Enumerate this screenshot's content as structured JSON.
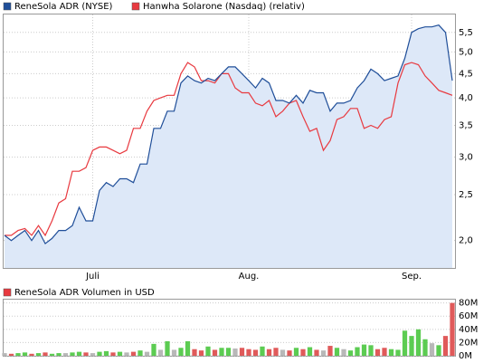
{
  "chart_data": [
    {
      "type": "line",
      "log_scale": true,
      "grid": true,
      "legend": "top-left",
      "categories": [
        null,
        null,
        null,
        null,
        null,
        null,
        null,
        null,
        null,
        null,
        null,
        null,
        null,
        "Juli",
        null,
        null,
        null,
        null,
        null,
        null,
        null,
        null,
        null,
        null,
        null,
        null,
        null,
        null,
        null,
        null,
        null,
        null,
        null,
        null,
        null,
        null,
        "Aug.",
        null,
        null,
        null,
        null,
        null,
        null,
        null,
        null,
        null,
        null,
        null,
        null,
        null,
        null,
        null,
        null,
        null,
        null,
        null,
        null,
        null,
        null,
        null,
        "Sep.",
        null,
        null,
        null,
        null,
        null,
        null
      ],
      "series": [
        {
          "name": "ReneSola ADR (NYSE)",
          "color": "#1f4e99",
          "fill": "#dde8f8",
          "values": [
            2.05,
            2.0,
            2.05,
            2.1,
            2.0,
            2.1,
            1.97,
            2.02,
            2.1,
            2.1,
            2.15,
            2.35,
            2.2,
            2.2,
            2.55,
            2.65,
            2.6,
            2.7,
            2.7,
            2.65,
            2.9,
            2.9,
            3.45,
            3.45,
            3.75,
            3.75,
            4.3,
            4.45,
            4.35,
            4.3,
            4.4,
            4.35,
            4.5,
            4.65,
            4.65,
            4.5,
            4.35,
            4.2,
            4.4,
            4.3,
            3.95,
            3.95,
            3.9,
            4.05,
            3.9,
            4.15,
            4.1,
            4.1,
            3.75,
            3.9,
            3.9,
            3.95,
            4.2,
            4.35,
            4.6,
            4.5,
            4.35,
            4.4,
            4.45,
            4.85,
            5.5,
            5.6,
            5.65,
            5.65,
            5.7,
            5.5,
            4.35
          ]
        },
        {
          "name": "Hanwha Solarone (Nasdaq) (relativ)",
          "color": "#e8393f",
          "values": [
            2.05,
            2.05,
            2.1,
            2.12,
            2.05,
            2.15,
            2.05,
            2.2,
            2.4,
            2.45,
            2.8,
            2.8,
            2.85,
            3.1,
            3.15,
            3.15,
            3.1,
            3.05,
            3.1,
            3.45,
            3.45,
            3.75,
            3.95,
            4.0,
            4.05,
            4.05,
            4.5,
            4.75,
            4.65,
            4.35,
            4.35,
            4.3,
            4.5,
            4.5,
            4.2,
            4.1,
            4.1,
            3.9,
            3.85,
            3.95,
            3.65,
            3.75,
            3.9,
            3.95,
            3.65,
            3.4,
            3.45,
            3.1,
            3.25,
            3.6,
            3.65,
            3.8,
            3.8,
            3.45,
            3.5,
            3.45,
            3.6,
            3.65,
            4.3,
            4.7,
            4.75,
            4.7,
            4.45,
            4.3,
            4.15,
            4.1,
            4.05
          ]
        }
      ],
      "ylim": [
        1.75,
        6.0
      ],
      "yticks": [
        {
          "value": 2,
          "label": "2,0"
        },
        {
          "value": 2.5,
          "label": "2,5"
        },
        {
          "value": 3,
          "label": "3,0"
        },
        {
          "value": 3.5,
          "label": "3,5"
        },
        {
          "value": 4,
          "label": "4,0"
        },
        {
          "value": 4.5,
          "label": "4,5"
        },
        {
          "value": 5,
          "label": "5,0"
        },
        {
          "value": 5.5,
          "label": "5,5"
        }
      ]
    },
    {
      "type": "bar",
      "grid": true,
      "series": [
        {
          "name": "ReneSola ADR Volumen in USD",
          "color": "#e8393f",
          "up_color": "#5ccc52",
          "down_color": "#e05a5a",
          "flat_color": "#b8b8b8",
          "values": [
            4000000,
            3000000,
            4000000,
            5000000,
            3000000,
            4000000,
            5000000,
            3000000,
            4000000,
            4000000,
            5000000,
            6000000,
            5000000,
            4000000,
            6000000,
            7000000,
            5000000,
            6000000,
            5000000,
            6000000,
            8000000,
            6000000,
            18000000,
            9000000,
            22000000,
            9000000,
            12000000,
            22000000,
            10000000,
            8000000,
            14000000,
            9000000,
            12000000,
            12000000,
            11000000,
            12000000,
            10000000,
            9000000,
            14000000,
            10000000,
            12000000,
            9000000,
            8000000,
            12000000,
            10000000,
            13000000,
            9000000,
            8000000,
            15000000,
            12000000,
            10000000,
            8000000,
            13000000,
            17000000,
            16000000,
            10000000,
            12000000,
            10000000,
            9000000,
            38000000,
            30000000,
            40000000,
            25000000,
            19000000,
            16000000,
            30000000,
            80000000
          ]
        }
      ],
      "ylim": [
        0,
        85000000
      ],
      "yticks": [
        {
          "value": 0,
          "label": "0M"
        },
        {
          "value": 20000000,
          "label": "20M"
        },
        {
          "value": 40000000,
          "label": "40M"
        },
        {
          "value": 60000000,
          "label": "60M"
        },
        {
          "value": 80000000,
          "label": "80M"
        }
      ]
    }
  ]
}
